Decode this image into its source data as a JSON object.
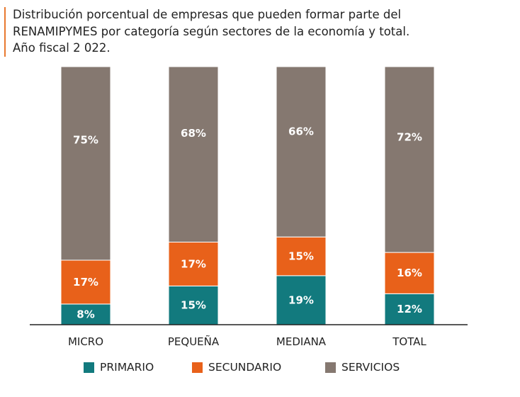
{
  "title_lines": [
    "Distribución porcentual de empresas que pueden formar parte del",
    "RENAMIPYMES por categoría según sectores de la economía y total.",
    "Año fiscal 2 022."
  ],
  "colors": {
    "primario": "#127a7e",
    "secundario": "#e8611a",
    "servicios": "#857870",
    "axis": "#222222",
    "accent": "#e8792f"
  },
  "legend": [
    {
      "label": "PRIMARIO",
      "color": "#127a7e"
    },
    {
      "label": "SECUNDARIO",
      "color": "#e8611a"
    },
    {
      "label": "SERVICIOS",
      "color": "#857870"
    }
  ],
  "chart_data": {
    "type": "bar",
    "stacked": true,
    "categories": [
      "MICRO",
      "PEQUEÑA",
      "MEDIANA",
      "TOTAL"
    ],
    "series": [
      {
        "name": "PRIMARIO",
        "values": [
          8,
          15,
          19,
          12
        ],
        "labels": [
          "8%",
          "15%",
          "19%",
          "12%"
        ]
      },
      {
        "name": "SECUNDARIO",
        "values": [
          17,
          17,
          15,
          16
        ],
        "labels": [
          "17%",
          "17%",
          "15%",
          "16%"
        ]
      },
      {
        "name": "SERVICIOS",
        "values": [
          75,
          68,
          66,
          72
        ],
        "labels": [
          "75%",
          "68%",
          "66%",
          "72%"
        ]
      }
    ],
    "ylim": [
      0,
      100
    ],
    "legend_position": "bottom",
    "grid": false
  }
}
